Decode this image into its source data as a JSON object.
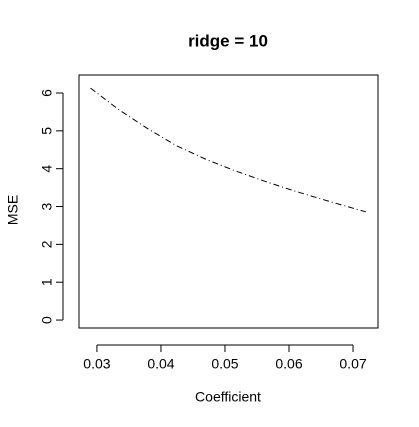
{
  "chart_data": {
    "type": "line",
    "title": "ridge = 10",
    "xlabel": "Coefficient",
    "ylabel": "MSE",
    "x": [
      0.029,
      0.0335,
      0.038,
      0.0425,
      0.047,
      0.0515,
      0.056,
      0.0605,
      0.065,
      0.0695,
      0.072
    ],
    "values": [
      6.13,
      5.55,
      5.05,
      4.6,
      4.25,
      3.95,
      3.68,
      3.43,
      3.2,
      2.98,
      2.86
    ],
    "color": "#000000",
    "line_style": "dashdot",
    "xlim": [
      0.0272,
      0.0739
    ],
    "ylim": [
      -0.21,
      6.476
    ],
    "xticks": [
      0.03,
      0.04,
      0.05,
      0.06,
      0.07
    ],
    "yticks": [
      0,
      1,
      2,
      3,
      4,
      5,
      6
    ]
  }
}
